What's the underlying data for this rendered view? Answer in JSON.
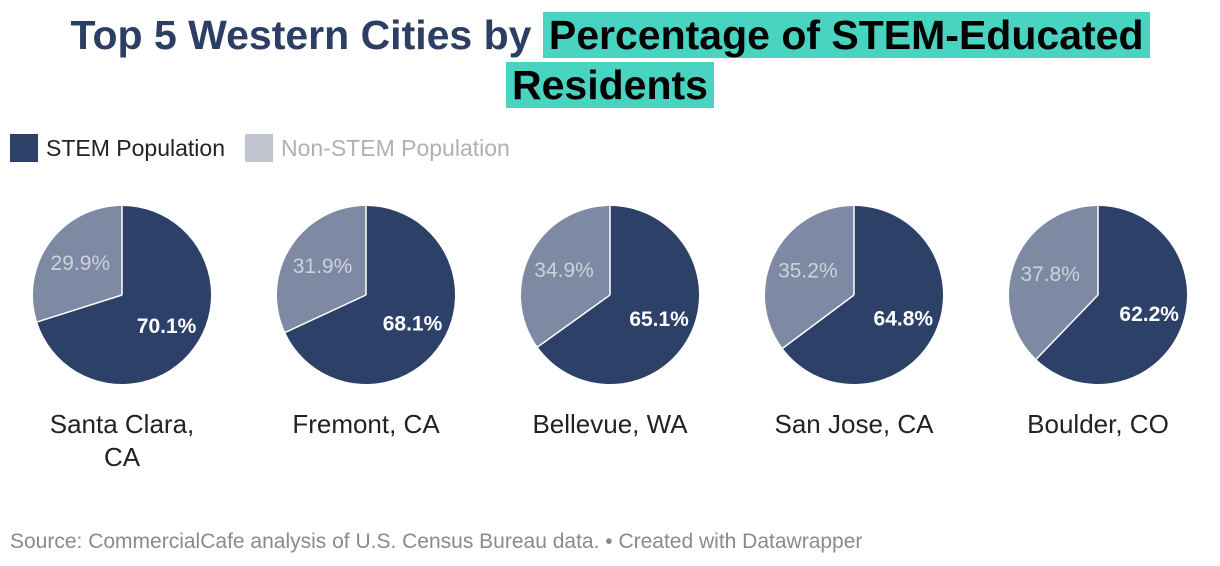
{
  "title_plain": "Top 5 Western Cities by",
  "title_highlight": "Percentage of STEM-Educated Residents",
  "colors": {
    "stem": "#2d4068",
    "non_stem": "#7e8aa3",
    "legend_non_stem": "#c0c5cf",
    "highlight": "#48d4c1"
  },
  "legend": [
    {
      "label": "STEM Population",
      "color": "#2d4068",
      "text_color": "#222222"
    },
    {
      "label": "Non-STEM Population",
      "color": "#c0c5cf",
      "text_color": "#b0b0b0"
    }
  ],
  "chart_data": {
    "type": "pie",
    "series_names": [
      "STEM Population",
      "Non-STEM Population"
    ],
    "charts": [
      {
        "category": "Santa Clara, CA",
        "values": [
          70.1,
          29.9
        ],
        "labels": [
          "70.1%",
          "29.9%"
        ]
      },
      {
        "category": "Fremont, CA",
        "values": [
          68.1,
          31.9
        ],
        "labels": [
          "68.1%",
          "31.9%"
        ]
      },
      {
        "category": "Bellevue, WA",
        "values": [
          65.1,
          34.9
        ],
        "labels": [
          "65.1%",
          "34.9%"
        ]
      },
      {
        "category": "San Jose, CA",
        "values": [
          64.8,
          35.2
        ],
        "labels": [
          "64.8%",
          "35.2%"
        ]
      },
      {
        "category": "Boulder, CO",
        "values": [
          62.2,
          37.8
        ],
        "labels": [
          "62.2%",
          "37.8%"
        ]
      }
    ]
  },
  "source": "Source: CommercialCafe analysis of U.S. Census Bureau data. • Created with Datawrapper"
}
